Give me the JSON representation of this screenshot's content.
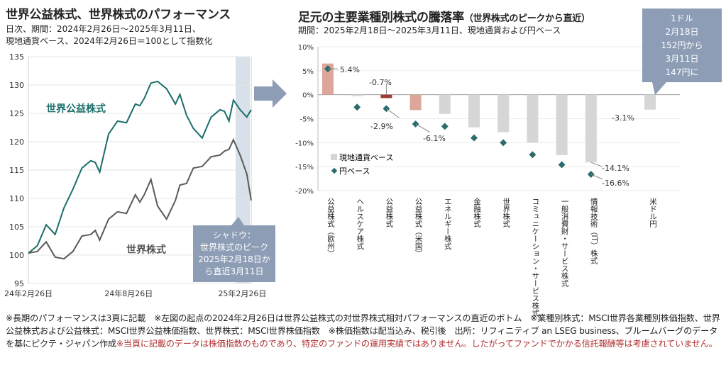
{
  "left": {
    "title": "世界公益株式、世界株式のパフォーマンス",
    "sub1": "日次、期間：2024年2月26日～2025年3月11日、",
    "sub2": "現地通貨ベース、2024年2月26日＝100として指数化"
  },
  "right": {
    "title": "足元の主要業種別株式の騰落率",
    "title_small": "（世界株式のピークから直近）",
    "sub": "期間：2025年2月18日～2025年3月11日、現地通貨および円ベース"
  },
  "chart_data": [
    {
      "type": "line",
      "ylim": [
        95,
        135
      ],
      "yticks": [
        "95",
        "100",
        "105",
        "110",
        "115",
        "120",
        "125",
        "130",
        "135"
      ],
      "xticks": [
        "24年2月26日",
        "24年8月26日",
        "25年2月26日"
      ],
      "series": [
        {
          "name": "世界公益株式",
          "color": "#1a6e6a",
          "x": [
            0,
            0.04,
            0.08,
            0.12,
            0.16,
            0.2,
            0.24,
            0.28,
            0.3,
            0.32,
            0.36,
            0.4,
            0.44,
            0.48,
            0.5,
            0.52,
            0.55,
            0.58,
            0.62,
            0.66,
            0.68,
            0.71,
            0.74,
            0.78,
            0.82,
            0.86,
            0.88,
            0.9,
            0.92,
            0.95,
            0.98,
            1.0
          ],
          "y": [
            100,
            102,
            105,
            104,
            108,
            112,
            115,
            117,
            116,
            115,
            121,
            124,
            123,
            127,
            126,
            128,
            130,
            131,
            129,
            127,
            128,
            125,
            122,
            121,
            124,
            126,
            125,
            124,
            127,
            126,
            124,
            126
          ]
        },
        {
          "name": "世界株式",
          "color": "#5a5a5a",
          "x": [
            0,
            0.04,
            0.08,
            0.12,
            0.16,
            0.2,
            0.24,
            0.28,
            0.3,
            0.32,
            0.36,
            0.4,
            0.44,
            0.48,
            0.5,
            0.52,
            0.55,
            0.58,
            0.62,
            0.66,
            0.68,
            0.71,
            0.74,
            0.78,
            0.82,
            0.86,
            0.88,
            0.9,
            0.92,
            0.95,
            0.98,
            1.0
          ],
          "y": [
            100,
            101,
            102,
            100,
            99,
            101,
            103,
            104,
            104,
            103,
            106,
            108,
            107,
            111,
            109,
            111,
            113,
            109,
            106,
            110,
            112,
            113,
            115,
            116,
            117,
            118,
            118,
            119,
            120,
            118,
            114,
            110
          ]
        }
      ],
      "shadow_from": 0.93,
      "shadow_label": [
        "シャドウ：",
        "世界株式のピーク",
        "2025年2月18日か",
        "ら直近3月11日"
      ]
    },
    {
      "type": "bar",
      "ylim": [
        -20,
        10
      ],
      "yticks": [
        "10%",
        "5%",
        "0%",
        "-5%",
        "-10%",
        "-15%",
        "-20%"
      ],
      "categories": [
        "公益株式（欧州）",
        "ヘルスケア株式",
        "公益株式",
        "公益株式（米国）",
        "エネルギー株式",
        "金融株式",
        "世界株式",
        "コミュニケーション・サービス株式",
        "一般消費財・サービス株式",
        "情報技術（IT）株式",
        "米ドル円"
      ],
      "series": [
        {
          "name": "現地通貨ベース",
          "values": [
            6.5,
            -0.3,
            -0.7,
            -3.2,
            -4.0,
            -6.8,
            -7.8,
            -10.0,
            -12.6,
            -14.1,
            -3.1
          ]
        },
        {
          "name": "円ベース",
          "values": [
            5.4,
            -2.6,
            -2.9,
            -6.1,
            -6.6,
            -9.0,
            -10.0,
            -12.5,
            -14.6,
            -16.6,
            null
          ]
        }
      ],
      "labels": {
        "bar_label_1": "-0.7%",
        "bar_label_2": "-14.1%",
        "bar_label_3": "-3.1%",
        "point_label_1": "5.4%",
        "point_label_2": "-2.9%",
        "point_label_3": "-6.1%",
        "point_label_4": "-16.6%"
      },
      "colors": {
        "highlight": "#dca69b",
        "highlight_dark": "#9e3b35",
        "neutral": "#d6d6d6",
        "marker": "#2b6b6b"
      }
    }
  ],
  "callout": [
    "1ドル",
    "2月18日",
    "152円から",
    "3月11日",
    "147円に"
  ],
  "footnote": {
    "text": "※長期のパフォーマンスは3頁に記載　※左図の起点の2024年2月26日は世界公益株式の対世界株式相対パフォーマンスの直近のボトム　※業種別株式：MSCI世界各業種別株価指数、世界公益株式および公益株式：MSCI世界公益株価指数、世界株式：MSCI世界株価指数　※株価指数は配当込み、税引後　出所：リフィニティブ an LSEG business、ブルームバーグのデータを基にピクテ・ジャパン作成",
    "red": "※当頁に記載のデータは株価指数のものであり、特定のファンドの運用実績ではありません。したがってファンドでかかる信託報酬等は考慮されていません。"
  }
}
